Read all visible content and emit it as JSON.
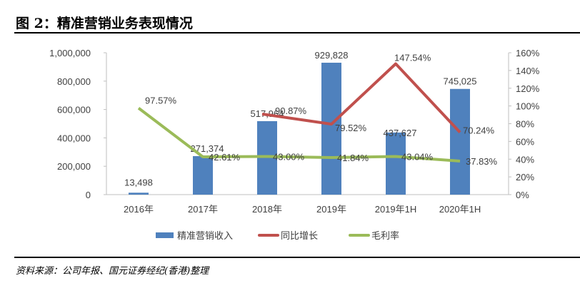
{
  "title": "图 2：精准营销业务表现情况",
  "source": "资料来源：公司年报、国元证券经纪(香港)整理",
  "chart_data": {
    "type": "bar+line",
    "categories": [
      "2016年",
      "2017年",
      "2018年",
      "2019年",
      "2019年1H",
      "2020年1H"
    ],
    "left_axis": {
      "ylim": [
        0,
        1000000
      ],
      "ticks": [
        "0",
        "200,000",
        "400,000",
        "600,000",
        "800,000",
        "1,000,000"
      ],
      "tick_values": [
        0,
        200000,
        400000,
        600000,
        800000,
        1000000
      ]
    },
    "right_axis": {
      "ylim": [
        0,
        160
      ],
      "ticks": [
        "0%",
        "20%",
        "40%",
        "60%",
        "80%",
        "100%",
        "120%",
        "140%",
        "160%"
      ],
      "tick_values": [
        0,
        20,
        40,
        60,
        80,
        100,
        120,
        140,
        160
      ]
    },
    "legend_position": "bottom",
    "grid": false,
    "series": [
      {
        "name": "精准营销收入",
        "type": "bar",
        "axis": "left",
        "color": "#4f81bd",
        "values": [
          13498,
          271374,
          517964,
          929828,
          437627,
          745025
        ],
        "labels": [
          "13,498",
          "271,374",
          "517,964",
          "929,828",
          "437,627",
          "745,025"
        ]
      },
      {
        "name": "同比增长",
        "type": "line",
        "axis": "right",
        "color": "#c0504d",
        "values": [
          null,
          null,
          90.87,
          79.52,
          147.54,
          70.24
        ],
        "labels": [
          "",
          "",
          "90.87%",
          "79.52%",
          "147.54%",
          "70.24%"
        ]
      },
      {
        "name": "毛利率",
        "type": "line",
        "axis": "right",
        "color": "#9bbb59",
        "values": [
          97.57,
          42.61,
          43.0,
          41.84,
          43.04,
          37.83
        ],
        "labels": [
          "97.57%",
          "42.61%",
          "43.00%",
          "41.84%",
          "43.04%",
          "37.83%"
        ]
      }
    ]
  }
}
